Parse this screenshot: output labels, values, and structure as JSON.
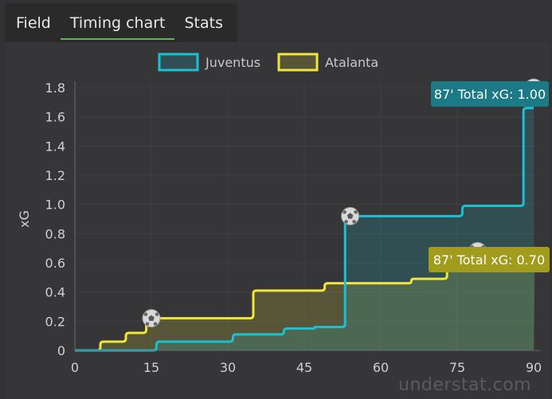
{
  "tabs": [
    {
      "label": "Field",
      "active": false
    },
    {
      "label": "Timing chart",
      "active": true
    },
    {
      "label": "Stats",
      "active": false
    }
  ],
  "watermark": "understat.com",
  "chart_data": {
    "type": "line",
    "title": "",
    "xlabel": "",
    "ylabel": "xG",
    "xlim": [
      0,
      90
    ],
    "ylim": [
      0,
      1.8
    ],
    "x_ticks": [
      0,
      15,
      30,
      45,
      60,
      75,
      90
    ],
    "y_ticks": [
      0,
      0.2,
      0.4,
      0.6,
      0.8,
      1.0,
      1.2,
      1.4,
      1.6,
      1.8
    ],
    "y_tick_labels": [
      "0",
      "0.2",
      "0.4",
      "0.6",
      "0.8",
      "1.0",
      "1.2",
      "1.4",
      "1.6",
      "1.8"
    ],
    "legend_position": "top",
    "series": [
      {
        "name": "Juventus",
        "color": "#1cc0d4",
        "steps": [
          [
            0,
            0
          ],
          [
            16,
            0.06
          ],
          [
            31,
            0.11
          ],
          [
            41,
            0.15
          ],
          [
            47,
            0.16
          ],
          [
            53,
            0.92
          ],
          [
            76,
            0.99
          ],
          [
            88,
            1.66
          ],
          [
            90,
            1.66
          ]
        ],
        "goals": [
          {
            "minute": 54,
            "xg": 0.92
          }
        ],
        "tooltip": "87' Total xG: 1.00"
      },
      {
        "name": "Atalanta",
        "color": "#f1e43a",
        "steps": [
          [
            0,
            0
          ],
          [
            5,
            0.06
          ],
          [
            10,
            0.12
          ],
          [
            14,
            0.22
          ],
          [
            35,
            0.41
          ],
          [
            49,
            0.46
          ],
          [
            66,
            0.49
          ],
          [
            73,
            0.57
          ],
          [
            74,
            0.67
          ],
          [
            90,
            0.69
          ]
        ],
        "goals": [
          {
            "minute": 15,
            "xg": 0.22
          },
          {
            "minute": 79,
            "xg": 0.68
          }
        ],
        "tooltip": "87' Total xG: 0.70"
      }
    ],
    "tooltip_colors": {
      "Juventus": "#1b7a86",
      "Atalanta": "#a19b1e"
    }
  }
}
